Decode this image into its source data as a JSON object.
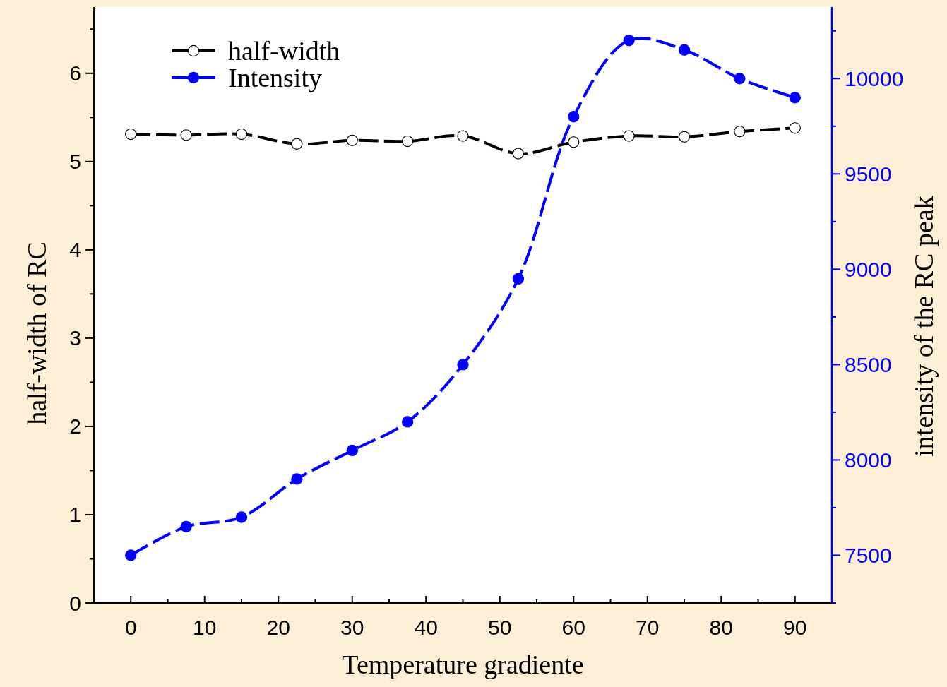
{
  "chart_data": {
    "type": "line",
    "xlabel": "Temperature gradiente",
    "ylabel": "half-width of RC",
    "y2label": "intensity of the RC peak",
    "x": [
      0,
      7.5,
      15,
      22.5,
      30,
      37.5,
      45,
      52.5,
      60,
      67.5,
      75,
      82.5,
      90
    ],
    "series": [
      {
        "name": "half-width",
        "color": "#000000",
        "values": [
          5.31,
          5.3,
          5.31,
          5.2,
          5.24,
          5.23,
          5.29,
          5.09,
          5.22,
          5.29,
          5.28,
          5.34,
          5.38
        ]
      },
      {
        "name": "Intensity",
        "color": "#0000ff",
        "axis": "y2",
        "values": [
          7500,
          7650,
          7700,
          7900,
          8050,
          8200,
          8500,
          8950,
          9800,
          10200,
          10150,
          10000,
          9900
        ]
      }
    ],
    "xlim": [
      -5,
      95
    ],
    "xticks": [
      0,
      10,
      20,
      30,
      40,
      50,
      60,
      70,
      80,
      90
    ],
    "ylim": [
      0,
      6.75
    ],
    "yticks": [
      0,
      1,
      2,
      3,
      4,
      5,
      6
    ],
    "y2lim": [
      7250,
      10375
    ],
    "y2ticks": [
      7500,
      8000,
      8500,
      9000,
      9500,
      10000
    ],
    "legend": "top left",
    "marker": "circle",
    "line_style": "dashed",
    "grid": false
  }
}
